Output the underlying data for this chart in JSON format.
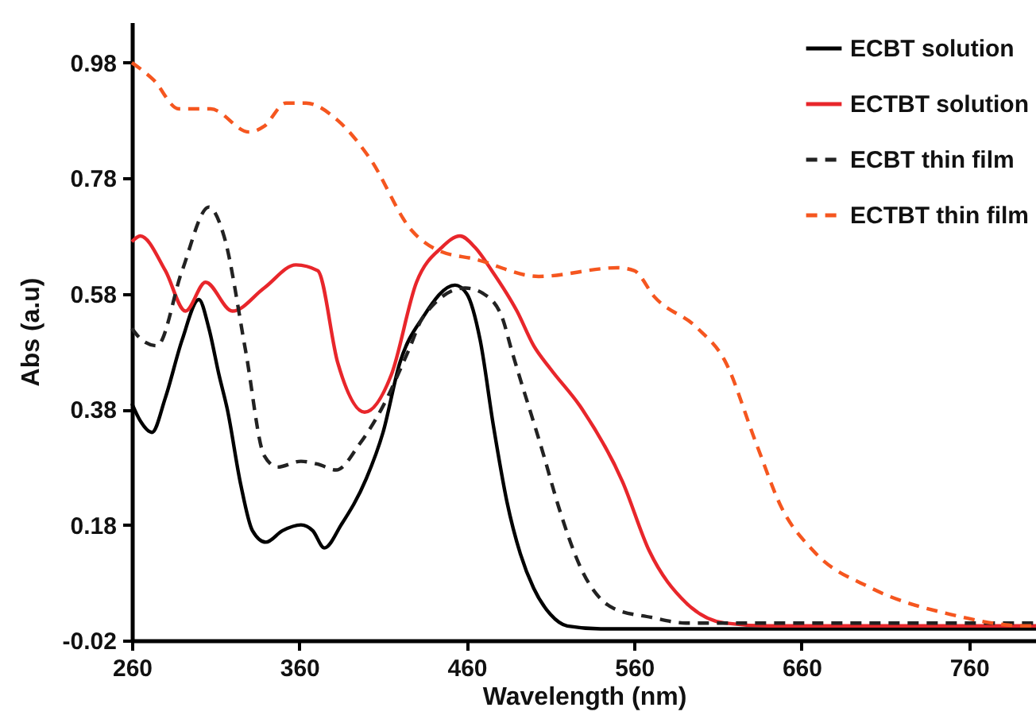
{
  "chart_data": {
    "type": "line",
    "xlabel": "Wavelength (nm)",
    "ylabel": "Abs (a.u)",
    "xlim": [
      260,
      800
    ],
    "xticks": [
      260,
      360,
      460,
      560,
      660,
      760
    ],
    "ylim": [
      -0.02,
      1.05
    ],
    "yticks": [
      -0.02,
      0.18,
      0.38,
      0.58,
      0.78,
      0.98
    ],
    "grid": false,
    "legend": "top right",
    "marker": "none",
    "series": [
      {
        "name": "ECBT solution",
        "color": "#000000",
        "line_style": "solid",
        "x": [
          260,
          265,
          272,
          280,
          290,
          300,
          306,
          312,
          317,
          325,
          332,
          340,
          350,
          361,
          368,
          375,
          385,
          400,
          410,
          420,
          434,
          453,
          460,
          468,
          476,
          484,
          492,
          500,
          510,
          520,
          540,
          800
        ],
        "values": [
          0.39,
          0.36,
          0.34,
          0.4,
          0.5,
          0.57,
          0.52,
          0.44,
          0.38,
          0.25,
          0.17,
          0.15,
          0.17,
          0.18,
          0.17,
          0.14,
          0.18,
          0.26,
          0.34,
          0.46,
          0.54,
          0.595,
          0.58,
          0.5,
          0.35,
          0.22,
          0.13,
          0.07,
          0.025,
          0.005,
          0,
          0
        ]
      },
      {
        "name": "ECTBT solution",
        "color": "#e8262b",
        "line_style": "solid",
        "x": [
          260,
          265,
          280,
          292,
          304,
          320,
          339,
          358,
          371,
          383,
          399,
          415,
          430,
          445,
          456,
          465,
          475,
          490,
          500,
          510,
          529,
          553,
          569,
          591,
          614,
          640,
          800
        ],
        "values": [
          0.67,
          0.68,
          0.62,
          0.55,
          0.6,
          0.55,
          0.59,
          0.63,
          0.62,
          0.46,
          0.375,
          0.44,
          0.6,
          0.66,
          0.68,
          0.66,
          0.62,
          0.55,
          0.49,
          0.45,
          0.38,
          0.255,
          0.135,
          0.045,
          0.01,
          0.005,
          0.005
        ]
      },
      {
        "name": "ECBT thin film",
        "color": "#222222",
        "line_style": "dashed",
        "x": [
          260,
          266,
          275,
          290,
          306,
          315,
          328,
          339,
          347,
          361,
          371,
          382,
          396,
          409,
          425,
          434,
          459,
          470,
          481,
          487,
          506,
          515,
          529,
          548,
          570,
          591,
          800
        ],
        "values": [
          0.52,
          0.5,
          0.49,
          0.62,
          0.73,
          0.68,
          0.48,
          0.3,
          0.28,
          0.29,
          0.285,
          0.275,
          0.32,
          0.38,
          0.48,
          0.54,
          0.59,
          0.58,
          0.54,
          0.48,
          0.3,
          0.21,
          0.1,
          0.035,
          0.02,
          0.01,
          0.01
        ]
      },
      {
        "name": "ECTBT thin film",
        "color": "#f5561f",
        "line_style": "dashed",
        "x": [
          260,
          273,
          288,
          307,
          330,
          339,
          352,
          364,
          383,
          402,
          427,
          443,
          465,
          503,
          550,
          560,
          572,
          598,
          614,
          633,
          648,
          667,
          702,
          749,
          794,
          800
        ],
        "values": [
          0.98,
          0.95,
          0.9,
          0.9,
          0.86,
          0.87,
          0.91,
          0.91,
          0.88,
          0.815,
          0.69,
          0.655,
          0.64,
          0.61,
          0.625,
          0.62,
          0.575,
          0.52,
          0.465,
          0.32,
          0.21,
          0.135,
          0.07,
          0.025,
          0.005,
          0.005
        ]
      }
    ]
  }
}
